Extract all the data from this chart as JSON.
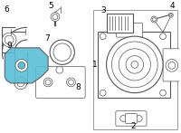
{
  "background_color": "#ffffff",
  "fig_width": 2.0,
  "fig_height": 1.47,
  "dpi": 100,
  "highlight_color": "#5bbfd6",
  "line_color": "#555555",
  "border_color": "#999999"
}
